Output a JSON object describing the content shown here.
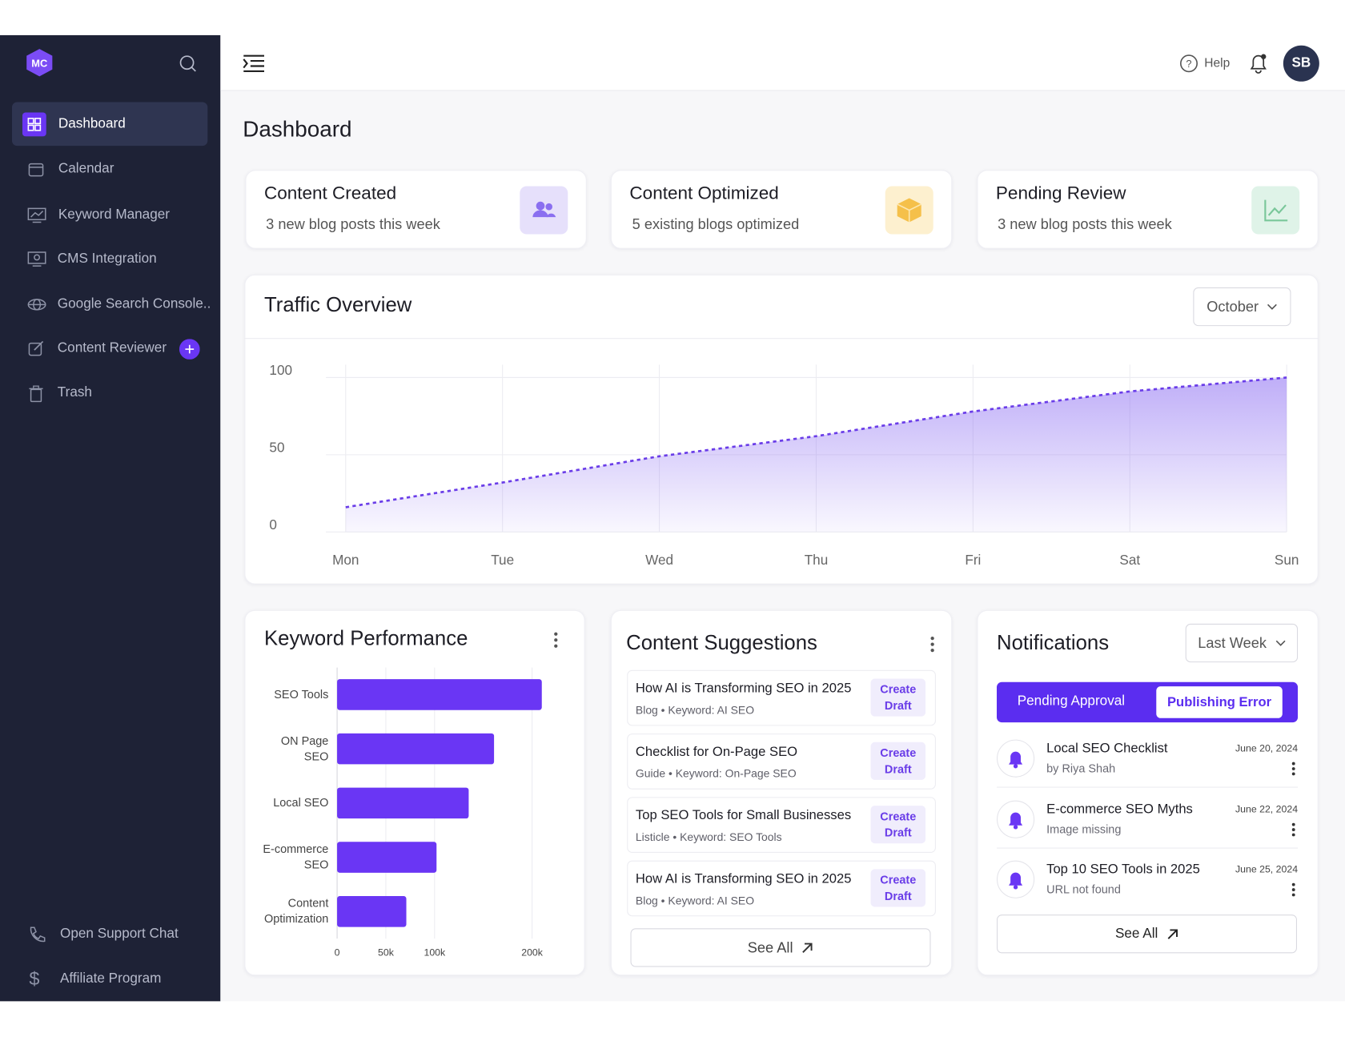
{
  "sidebar": {
    "nav": [
      "Dashboard",
      "Calendar",
      "Keyword Manager",
      "CMS Integration",
      "Google Search Console..",
      "Content Reviewer",
      "Trash"
    ],
    "footer": [
      "Open Support Chat",
      "Affiliate Program"
    ]
  },
  "header": {
    "help": "Help",
    "avatar": "SB"
  },
  "page_title": "Dashboard",
  "cards": [
    {
      "title": "Content Created",
      "subtitle": "3 new blog posts this week"
    },
    {
      "title": "Content Optimized",
      "subtitle": "5 existing blogs optimized"
    },
    {
      "title": "Pending Review",
      "subtitle": "3 new blog posts this week"
    }
  ],
  "traffic_filter": "October",
  "chart_data": [
    {
      "type": "area",
      "title": "Traffic Overview",
      "categories": [
        "Mon",
        "Tue",
        "Wed",
        "Thu",
        "Fri",
        "Sat",
        "Sun"
      ],
      "series": [
        {
          "color": "#6a3de8",
          "values": [
            16,
            32,
            49,
            62,
            78,
            91,
            100
          ]
        }
      ],
      "ylim": [
        0,
        100
      ],
      "yticks": [
        0,
        50,
        100
      ],
      "grid": true
    },
    {
      "type": "bar",
      "orientation": "horizontal",
      "title": "Keyword Performance",
      "categories": [
        "SEO Tools",
        "ON Page SEO",
        "Local SEO",
        "E-commerce SEO",
        "Content Optimization"
      ],
      "values": [
        210000,
        161000,
        135000,
        102000,
        71000
      ],
      "color": "#6a36f4",
      "xlim": [
        0,
        220000
      ],
      "xticks": [
        0,
        {
          "value": 50000,
          "label": "50k"
        },
        {
          "value": 100000,
          "label": "100k"
        },
        {
          "value": 200000,
          "label": "200k"
        }
      ],
      "grid": true
    }
  ],
  "content_suggestions": {
    "title": "Content Suggestions",
    "items": [
      {
        "title": "How AI is Transforming SEO in 2025",
        "meta": "Blog • Keyword: AI SEO",
        "action": "Create Draft"
      },
      {
        "title": "Checklist for On-Page SEO",
        "meta": "Guide • Keyword: On-Page SEO",
        "action": "Create Draft"
      },
      {
        "title": "Top SEO Tools for Small Businesses",
        "meta": "Listicle • Keyword: SEO Tools",
        "action": "Create Draft"
      },
      {
        "title": "How AI is Transforming SEO in 2025",
        "meta": "Blog • Keyword: AI SEO",
        "action": "Create Draft"
      }
    ],
    "see_all": "See All"
  },
  "notifications": {
    "title": "Notifications",
    "filter": "Last Week",
    "tabs": [
      "Pending Approval",
      "Publishing Error"
    ],
    "items": [
      {
        "title": "Local SEO Checklist",
        "detail": "by Riya Shah",
        "date": "June 20, 2024"
      },
      {
        "title": "E-commerce SEO Myths",
        "detail": "Image missing",
        "date": "June 22, 2024"
      },
      {
        "title": "Top 10 SEO Tools in 2025",
        "detail": "URL not found",
        "date": "June 25, 2024"
      }
    ],
    "see_all": "See All"
  }
}
